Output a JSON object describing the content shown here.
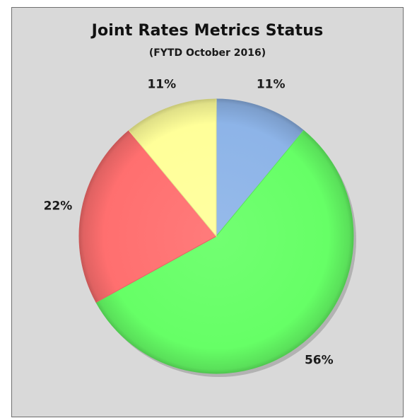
{
  "chart_data": {
    "type": "pie",
    "title": "Joint Rates Metrics Status",
    "subtitle": "(FYTD October  2016)",
    "slices": [
      {
        "value": 11,
        "label": "11%",
        "color": "#8db4e8"
      },
      {
        "value": 56,
        "label": "56%",
        "color": "#66ff66"
      },
      {
        "value": 22,
        "label": "22%",
        "color": "#ff6f6f"
      },
      {
        "value": 11,
        "label": "11%",
        "color": "#ffff99"
      }
    ],
    "start": "12 o'clock",
    "direction": "clockwise",
    "legend": "none"
  }
}
